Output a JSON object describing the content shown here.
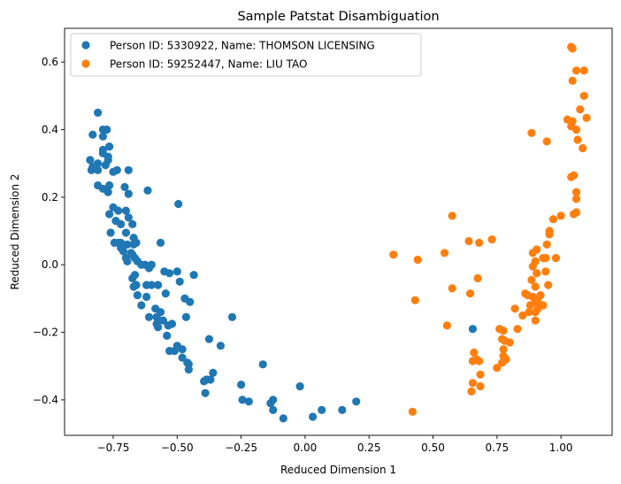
{
  "chart_data": {
    "type": "scatter",
    "title": "Sample Patstat Disambiguation",
    "xlabel": "Reduced Dimension 1",
    "ylabel": "Reduced Dimension 2",
    "xlim": [
      -0.94,
      1.2
    ],
    "ylim": [
      -0.505,
      0.7
    ],
    "xticks": [
      -0.75,
      -0.5,
      -0.25,
      0.0,
      0.25,
      0.5,
      0.75,
      1.0
    ],
    "xtick_labels": [
      "−0.75",
      "−0.50",
      "−0.25",
      "0.00",
      "0.25",
      "0.50",
      "0.75",
      "1.00"
    ],
    "yticks": [
      -0.4,
      -0.2,
      0.0,
      0.2,
      0.4,
      0.6
    ],
    "ytick_labels": [
      "−0.4",
      "−0.2",
      "0.0",
      "0.2",
      "0.4",
      "0.6"
    ],
    "grid": false,
    "legend_position": "upper-left",
    "series": [
      {
        "name": "Person ID: 5330922, Name: THOMSON LICENSING",
        "color": "#1f77b4",
        "points": [
          [
            -0.81,
            0.45
          ],
          [
            -0.83,
            0.385
          ],
          [
            -0.79,
            0.4
          ],
          [
            -0.775,
            0.4
          ],
          [
            -0.79,
            0.38
          ],
          [
            -0.765,
            0.35
          ],
          [
            -0.79,
            0.34
          ],
          [
            -0.81,
            0.3
          ],
          [
            -0.79,
            0.33
          ],
          [
            -0.77,
            0.32
          ],
          [
            -0.77,
            0.31
          ],
          [
            -0.84,
            0.31
          ],
          [
            -0.83,
            0.29
          ],
          [
            -0.835,
            0.28
          ],
          [
            -0.81,
            0.28
          ],
          [
            -0.78,
            0.295
          ],
          [
            -0.75,
            0.275
          ],
          [
            -0.735,
            0.28
          ],
          [
            -0.69,
            0.28
          ],
          [
            -0.81,
            0.235
          ],
          [
            -0.79,
            0.225
          ],
          [
            -0.765,
            0.235
          ],
          [
            -0.77,
            0.215
          ],
          [
            -0.705,
            0.23
          ],
          [
            -0.69,
            0.21
          ],
          [
            -0.615,
            0.22
          ],
          [
            -0.495,
            0.18
          ],
          [
            -0.75,
            0.17
          ],
          [
            -0.765,
            0.15
          ],
          [
            -0.73,
            0.16
          ],
          [
            -0.74,
            0.13
          ],
          [
            -0.72,
            0.12
          ],
          [
            -0.7,
            0.16
          ],
          [
            -0.69,
            0.14
          ],
          [
            -0.675,
            0.12
          ],
          [
            -0.7,
            0.095
          ],
          [
            -0.67,
            0.08
          ],
          [
            -0.76,
            0.095
          ],
          [
            -0.745,
            0.065
          ],
          [
            -0.73,
            0.065
          ],
          [
            -0.72,
            0.065
          ],
          [
            -0.695,
            0.06
          ],
          [
            -0.67,
            0.06
          ],
          [
            -0.66,
            0.065
          ],
          [
            -0.68,
            0.035
          ],
          [
            -0.71,
            0.04
          ],
          [
            -0.7,
            0.02
          ],
          [
            -0.72,
            0.05
          ],
          [
            -0.695,
            0.01
          ],
          [
            -0.675,
            0.03
          ],
          [
            -0.665,
            0.02
          ],
          [
            -0.655,
            0.01
          ],
          [
            -0.64,
            0.0
          ],
          [
            -0.625,
            0.0
          ],
          [
            -0.6,
            0.0
          ],
          [
            -0.61,
            -0.01
          ],
          [
            -0.565,
            0.065
          ],
          [
            -0.55,
            -0.02
          ],
          [
            -0.53,
            -0.025
          ],
          [
            -0.5,
            -0.02
          ],
          [
            -0.435,
            -0.03
          ],
          [
            -0.665,
            -0.03
          ],
          [
            -0.675,
            -0.04
          ],
          [
            -0.66,
            -0.06
          ],
          [
            -0.67,
            -0.065
          ],
          [
            -0.62,
            -0.06
          ],
          [
            -0.6,
            -0.06
          ],
          [
            -0.575,
            -0.06
          ],
          [
            -0.49,
            -0.05
          ],
          [
            -0.655,
            -0.09
          ],
          [
            -0.62,
            -0.095
          ],
          [
            -0.545,
            -0.085
          ],
          [
            -0.47,
            -0.1
          ],
          [
            -0.64,
            -0.12
          ],
          [
            -0.585,
            -0.13
          ],
          [
            -0.565,
            -0.14
          ],
          [
            -0.465,
            -0.155
          ],
          [
            -0.45,
            -0.11
          ],
          [
            -0.61,
            -0.155
          ],
          [
            -0.58,
            -0.155
          ],
          [
            -0.58,
            -0.175
          ],
          [
            -0.575,
            -0.185
          ],
          [
            -0.555,
            -0.165
          ],
          [
            -0.535,
            -0.18
          ],
          [
            -0.52,
            -0.175
          ],
          [
            -0.54,
            -0.21
          ],
          [
            -0.285,
            -0.155
          ],
          [
            -0.5,
            -0.24
          ],
          [
            -0.53,
            -0.255
          ],
          [
            -0.51,
            -0.255
          ],
          [
            -0.48,
            -0.25
          ],
          [
            -0.48,
            -0.275
          ],
          [
            -0.46,
            -0.29
          ],
          [
            -0.455,
            -0.295
          ],
          [
            -0.455,
            -0.31
          ],
          [
            -0.375,
            -0.22
          ],
          [
            -0.33,
            -0.24
          ],
          [
            -0.36,
            -0.32
          ],
          [
            -0.37,
            -0.34
          ],
          [
            -0.395,
            -0.345
          ],
          [
            -0.385,
            -0.34
          ],
          [
            -0.39,
            -0.38
          ],
          [
            -0.25,
            -0.355
          ],
          [
            -0.165,
            -0.295
          ],
          [
            -0.245,
            -0.4
          ],
          [
            -0.22,
            -0.405
          ],
          [
            -0.135,
            -0.41
          ],
          [
            -0.125,
            -0.4
          ],
          [
            -0.125,
            -0.43
          ],
          [
            -0.085,
            -0.455
          ],
          [
            -0.02,
            -0.36
          ],
          [
            0.03,
            -0.45
          ],
          [
            0.065,
            -0.43
          ],
          [
            0.145,
            -0.43
          ],
          [
            0.2,
            -0.405
          ],
          [
            0.655,
            -0.19
          ]
        ]
      },
      {
        "name": "Person ID: 59252447, Name: LIU TAO",
        "color": "#ff7f0e",
        "points": [
          [
            1.04,
            0.645
          ],
          [
            1.045,
            0.64
          ],
          [
            1.06,
            0.575
          ],
          [
            1.09,
            0.575
          ],
          [
            1.045,
            0.545
          ],
          [
            1.09,
            0.5
          ],
          [
            1.075,
            0.46
          ],
          [
            1.025,
            0.43
          ],
          [
            1.045,
            0.425
          ],
          [
            1.1,
            0.435
          ],
          [
            1.04,
            0.41
          ],
          [
            1.06,
            0.4
          ],
          [
            1.065,
            0.37
          ],
          [
            1.085,
            0.345
          ],
          [
            0.885,
            0.39
          ],
          [
            0.945,
            0.365
          ],
          [
            1.04,
            0.26
          ],
          [
            1.05,
            0.265
          ],
          [
            1.06,
            0.215
          ],
          [
            1.06,
            0.195
          ],
          [
            1.05,
            0.15
          ],
          [
            1.06,
            0.155
          ],
          [
            1.0,
            0.145
          ],
          [
            0.97,
            0.135
          ],
          [
            0.955,
            0.1
          ],
          [
            0.955,
            0.09
          ],
          [
            0.575,
            0.145
          ],
          [
            0.345,
            0.03
          ],
          [
            0.44,
            0.015
          ],
          [
            0.545,
            0.035
          ],
          [
            0.64,
            0.07
          ],
          [
            0.68,
            0.065
          ],
          [
            0.73,
            0.075
          ],
          [
            0.945,
            0.06
          ],
          [
            0.905,
            0.045
          ],
          [
            0.89,
            0.035
          ],
          [
            0.93,
            0.02
          ],
          [
            0.94,
            0.02
          ],
          [
            0.98,
            0.02
          ],
          [
            0.9,
            0.01
          ],
          [
            0.89,
            -0.005
          ],
          [
            0.905,
            -0.025
          ],
          [
            0.94,
            -0.02
          ],
          [
            0.675,
            -0.04
          ],
          [
            0.575,
            -0.07
          ],
          [
            0.885,
            -0.045
          ],
          [
            0.9,
            -0.065
          ],
          [
            0.95,
            -0.06
          ],
          [
            0.645,
            -0.085
          ],
          [
            0.86,
            -0.085
          ],
          [
            0.87,
            -0.09
          ],
          [
            0.89,
            -0.095
          ],
          [
            0.91,
            -0.1
          ],
          [
            0.92,
            -0.09
          ],
          [
            0.88,
            -0.12
          ],
          [
            0.9,
            -0.11
          ],
          [
            0.93,
            -0.12
          ],
          [
            0.43,
            -0.105
          ],
          [
            0.82,
            -0.13
          ],
          [
            0.85,
            -0.15
          ],
          [
            0.875,
            -0.14
          ],
          [
            0.9,
            -0.14
          ],
          [
            0.91,
            -0.13
          ],
          [
            0.925,
            -0.12
          ],
          [
            0.9,
            -0.165
          ],
          [
            0.555,
            -0.18
          ],
          [
            0.76,
            -0.19
          ],
          [
            0.775,
            -0.195
          ],
          [
            0.83,
            -0.19
          ],
          [
            0.77,
            -0.22
          ],
          [
            0.78,
            -0.225
          ],
          [
            0.8,
            -0.23
          ],
          [
            0.775,
            -0.25
          ],
          [
            0.785,
            -0.28
          ],
          [
            0.66,
            -0.26
          ],
          [
            0.775,
            -0.27
          ],
          [
            0.67,
            -0.28
          ],
          [
            0.655,
            -0.285
          ],
          [
            0.68,
            -0.285
          ],
          [
            0.77,
            -0.29
          ],
          [
            0.75,
            -0.305
          ],
          [
            0.685,
            -0.325
          ],
          [
            0.655,
            -0.35
          ],
          [
            0.685,
            -0.36
          ],
          [
            0.65,
            -0.375
          ],
          [
            0.42,
            -0.435
          ]
        ]
      }
    ]
  }
}
